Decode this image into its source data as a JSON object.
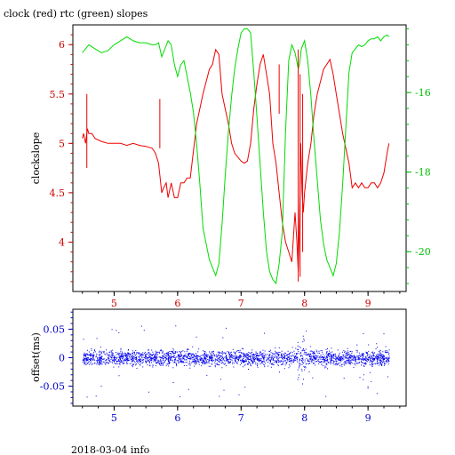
{
  "title": "clock (red) rtc (green) slopes",
  "footer": "2018-03-04 info",
  "colors": {
    "clock": "#ee0000",
    "rtc": "#00dd00",
    "offset": "#0000ee",
    "axis": "#000000"
  },
  "chart_data": [
    {
      "type": "line",
      "title": "clock (red) rtc (green) slopes",
      "ylabel": "clockslope",
      "xlim": [
        4.35,
        9.6
      ],
      "ylim": [
        3.5,
        6.2
      ],
      "y2lim": [
        -21.0,
        -14.3
      ],
      "x_ticks": [
        "5",
        "6",
        "7",
        "8",
        "9"
      ],
      "y_ticks": [
        "4",
        "4.5",
        "5",
        "5.5",
        "6"
      ],
      "y2_ticks": [
        "-16",
        "-18",
        "-20"
      ],
      "series": [
        {
          "axis": "left",
          "color": "#ee0000",
          "x": [
            4.5,
            4.52,
            4.55,
            4.58,
            4.6,
            4.65,
            4.7,
            4.8,
            4.9,
            5.0,
            5.1,
            5.2,
            5.3,
            5.4,
            5.5,
            5.6,
            5.65,
            5.7,
            5.75,
            5.78,
            5.82,
            5.85,
            5.9,
            5.95,
            6.0,
            6.05,
            6.1,
            6.15,
            6.2,
            6.3,
            6.4,
            6.5,
            6.55,
            6.6,
            6.65,
            6.7,
            6.75,
            6.8,
            6.85,
            6.9,
            7.0,
            7.05,
            7.1,
            7.15,
            7.2,
            7.25,
            7.3,
            7.35,
            7.4,
            7.45,
            7.5,
            7.55,
            7.6,
            7.65,
            7.7,
            7.75,
            7.8,
            7.85,
            7.88,
            7.9,
            7.92,
            7.94,
            7.96,
            7.98,
            8.0,
            8.05,
            8.1,
            8.15,
            8.2,
            8.3,
            8.4,
            8.45,
            8.5,
            8.55,
            8.6,
            8.65,
            8.7,
            8.75,
            8.8,
            8.85,
            8.9,
            8.95,
            9.0,
            9.05,
            9.1,
            9.15,
            9.2,
            9.25,
            9.3,
            9.33
          ],
          "values": [
            5.05,
            5.1,
            5.0,
            5.15,
            5.1,
            5.1,
            5.05,
            5.02,
            5.0,
            5.0,
            5.0,
            4.98,
            5.0,
            4.98,
            4.97,
            4.95,
            4.9,
            4.8,
            4.5,
            4.55,
            4.6,
            4.45,
            4.6,
            4.45,
            4.45,
            4.6,
            4.6,
            4.65,
            4.65,
            5.2,
            5.5,
            5.75,
            5.8,
            5.95,
            5.9,
            5.5,
            5.35,
            5.2,
            5.0,
            4.9,
            4.82,
            4.8,
            4.82,
            5.0,
            5.35,
            5.6,
            5.8,
            5.9,
            5.7,
            5.5,
            5.0,
            4.8,
            4.5,
            4.2,
            4.0,
            3.9,
            3.8,
            4.3,
            4.0,
            3.7,
            4.2,
            5.0,
            4.5,
            4.3,
            4.5,
            4.8,
            5.0,
            5.3,
            5.5,
            5.75,
            5.85,
            5.7,
            5.5,
            5.3,
            5.1,
            4.95,
            4.8,
            4.55,
            4.6,
            4.55,
            4.6,
            4.55,
            4.55,
            4.6,
            4.6,
            4.55,
            4.6,
            4.7,
            4.9,
            5.0
          ]
        },
        {
          "axis": "right",
          "color": "#00dd00",
          "x": [
            4.5,
            4.55,
            4.6,
            4.7,
            4.8,
            4.9,
            5.0,
            5.1,
            5.2,
            5.3,
            5.4,
            5.5,
            5.6,
            5.65,
            5.7,
            5.75,
            5.8,
            5.85,
            5.9,
            5.95,
            6.0,
            6.05,
            6.1,
            6.15,
            6.2,
            6.25,
            6.3,
            6.35,
            6.4,
            6.45,
            6.5,
            6.55,
            6.6,
            6.65,
            6.7,
            6.75,
            6.8,
            6.85,
            6.9,
            6.95,
            7.0,
            7.05,
            7.1,
            7.15,
            7.2,
            7.25,
            7.3,
            7.35,
            7.4,
            7.45,
            7.5,
            7.55,
            7.6,
            7.65,
            7.7,
            7.75,
            7.8,
            7.85,
            7.9,
            7.92,
            7.95,
            8.0,
            8.05,
            8.1,
            8.15,
            8.2,
            8.25,
            8.3,
            8.35,
            8.4,
            8.45,
            8.5,
            8.55,
            8.6,
            8.65,
            8.7,
            8.75,
            8.8,
            8.85,
            8.9,
            8.95,
            9.0,
            9.05,
            9.1,
            9.15,
            9.2,
            9.25,
            9.3,
            9.33
          ],
          "values": [
            -15.0,
            -14.9,
            -14.8,
            -14.9,
            -15.0,
            -14.95,
            -14.8,
            -14.7,
            -14.6,
            -14.7,
            -14.75,
            -14.75,
            -14.8,
            -14.8,
            -14.75,
            -15.1,
            -14.9,
            -14.7,
            -14.8,
            -15.3,
            -15.6,
            -15.3,
            -15.2,
            -15.6,
            -16.0,
            -16.5,
            -17.3,
            -18.3,
            -19.4,
            -19.8,
            -20.2,
            -20.4,
            -20.6,
            -20.3,
            -19.3,
            -18.1,
            -17.0,
            -16.1,
            -15.4,
            -14.9,
            -14.5,
            -14.4,
            -14.4,
            -14.5,
            -15.5,
            -16.6,
            -17.8,
            -19.0,
            -20.0,
            -20.5,
            -20.7,
            -20.8,
            -20.3,
            -19.5,
            -17.0,
            -15.2,
            -14.8,
            -15.0,
            -15.4,
            -15.3,
            -14.9,
            -14.7,
            -15.2,
            -16.1,
            -17.2,
            -18.2,
            -19.2,
            -19.8,
            -20.2,
            -20.4,
            -20.6,
            -20.3,
            -19.5,
            -18.3,
            -16.9,
            -15.5,
            -15.0,
            -14.9,
            -14.8,
            -14.85,
            -14.8,
            -14.7,
            -14.65,
            -14.65,
            -14.6,
            -14.7,
            -14.6,
            -14.55,
            -14.6
          ]
        }
      ]
    },
    {
      "type": "scatter",
      "ylabel": "offset(ms)",
      "xlim": [
        4.35,
        9.6
      ],
      "ylim": [
        -0.085,
        0.085
      ],
      "x_ticks": [
        "5",
        "6",
        "7",
        "8",
        "9"
      ],
      "y_ticks": [
        "0.05",
        "0",
        "-0.05"
      ],
      "series": [
        {
          "color": "#0000ee",
          "x_range": [
            4.5,
            9.33
          ],
          "center": 0.0,
          "typical_spread": 0.012,
          "outlier_range": [
            -0.07,
            0.08
          ],
          "dense_burst_x": 7.95
        }
      ]
    }
  ]
}
